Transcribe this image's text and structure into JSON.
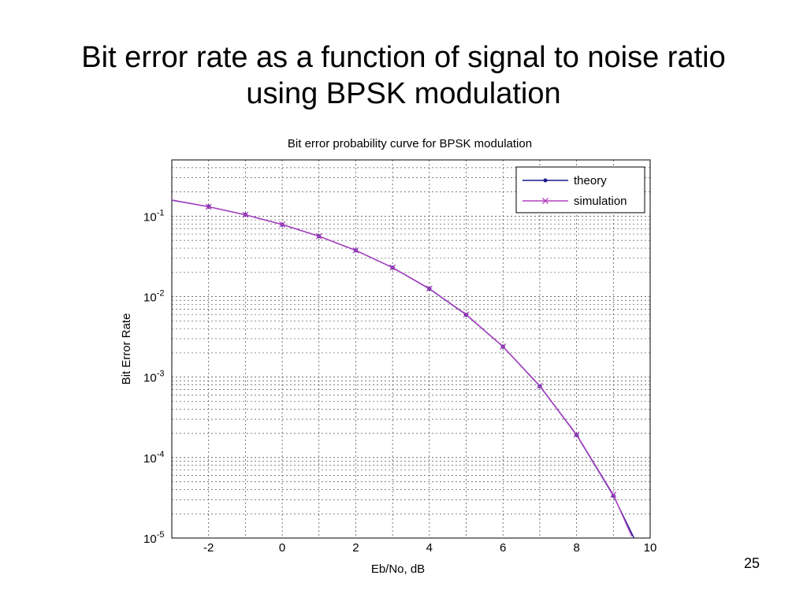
{
  "slide": {
    "title_line1": "Bit error rate as a function of signal to noise ratio",
    "title_line2": "using BPSK modulation",
    "page_number": "25"
  },
  "chart_data": {
    "type": "line",
    "title": "Bit error probability curve for BPSK modulation",
    "xlabel": "Eb/No, dB",
    "ylabel": "Bit Error Rate",
    "xlim": [
      -3,
      10
    ],
    "ylim": [
      1e-05,
      0.5
    ],
    "yscale": "log",
    "grid": true,
    "legend_position": "top-right",
    "x_ticks": [
      "-2",
      "0",
      "2",
      "4",
      "6",
      "8",
      "10"
    ],
    "y_ticks": [
      {
        "base": "10",
        "exp": "-1",
        "value": 0.1
      },
      {
        "base": "10",
        "exp": "-2",
        "value": 0.01
      },
      {
        "base": "10",
        "exp": "-3",
        "value": 0.001
      },
      {
        "base": "10",
        "exp": "-4",
        "value": 0.0001
      },
      {
        "base": "10",
        "exp": "-5",
        "value": 1e-05
      }
    ],
    "series": [
      {
        "name": "theory",
        "color": "#1a1a8c",
        "marker": "dot",
        "x": [
          -3,
          -2,
          -1,
          0,
          1,
          2,
          3,
          4,
          5,
          6,
          7,
          8,
          9,
          9.6
        ],
        "y": [
          0.158,
          0.131,
          0.104,
          0.0786,
          0.0563,
          0.0375,
          0.0229,
          0.0125,
          0.00595,
          0.00239,
          0.000773,
          0.000191,
          3.36e-05,
          9.2e-06
        ]
      },
      {
        "name": "simulation",
        "color": "#b040c0",
        "marker": "x",
        "x": [
          -3,
          -2,
          -1,
          0,
          1,
          2,
          3,
          4,
          5,
          6,
          7,
          8,
          9,
          9.5
        ],
        "y": [
          0.159,
          0.131,
          0.104,
          0.0788,
          0.0565,
          0.0376,
          0.023,
          0.0126,
          0.006,
          0.0024,
          0.00078,
          0.000193,
          3.45e-05,
          1.05e-05
        ]
      }
    ]
  }
}
